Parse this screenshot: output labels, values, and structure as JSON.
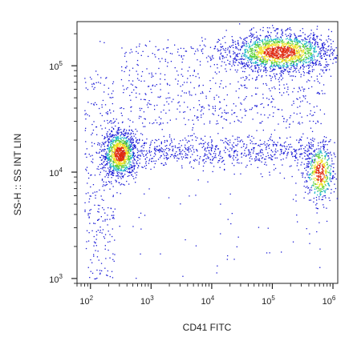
{
  "chart_data": {
    "type": "scatter",
    "title": "",
    "xlabel": "CD41 FITC",
    "ylabel": "SS-H :: SS INT LIN",
    "xscale": "log",
    "yscale": "log",
    "xlim": [
      60,
      1200000
    ],
    "ylim": [
      900,
      260000
    ],
    "render_style": "density dot plot (blue to red heat coloring)",
    "x_ticks": [
      {
        "value": 100,
        "base": "10",
        "exp": "2"
      },
      {
        "value": 1000,
        "base": "10",
        "exp": "3"
      },
      {
        "value": 10000,
        "base": "10",
        "exp": "4"
      },
      {
        "value": 100000,
        "base": "10",
        "exp": "5"
      },
      {
        "value": 1000000,
        "base": "10",
        "exp": "6"
      }
    ],
    "y_ticks": [
      {
        "value": 1000,
        "base": "10",
        "exp": "3"
      },
      {
        "value": 10000,
        "base": "10",
        "exp": "4"
      },
      {
        "value": 100000,
        "base": "10",
        "exp": "5"
      }
    ],
    "populations": [
      {
        "center_x": 300,
        "center_y": 15000,
        "spread_log_x": 0.14,
        "spread_log_y": 0.11,
        "weight": 0.22
      },
      {
        "center_x": 130000,
        "center_y": 135000,
        "spread_log_x": 0.42,
        "spread_log_y": 0.09,
        "weight": 0.34
      },
      {
        "center_x": 600000,
        "center_y": 10000,
        "spread_log_x": 0.12,
        "spread_log_y": 0.14,
        "weight": 0.1
      }
    ],
    "colors": {
      "low": "#1a1ad6",
      "mid_low": "#20b8c8",
      "mid": "#5ed23a",
      "mid_high": "#f0e020",
      "high": "#e02a10",
      "axis": "#222222"
    }
  }
}
